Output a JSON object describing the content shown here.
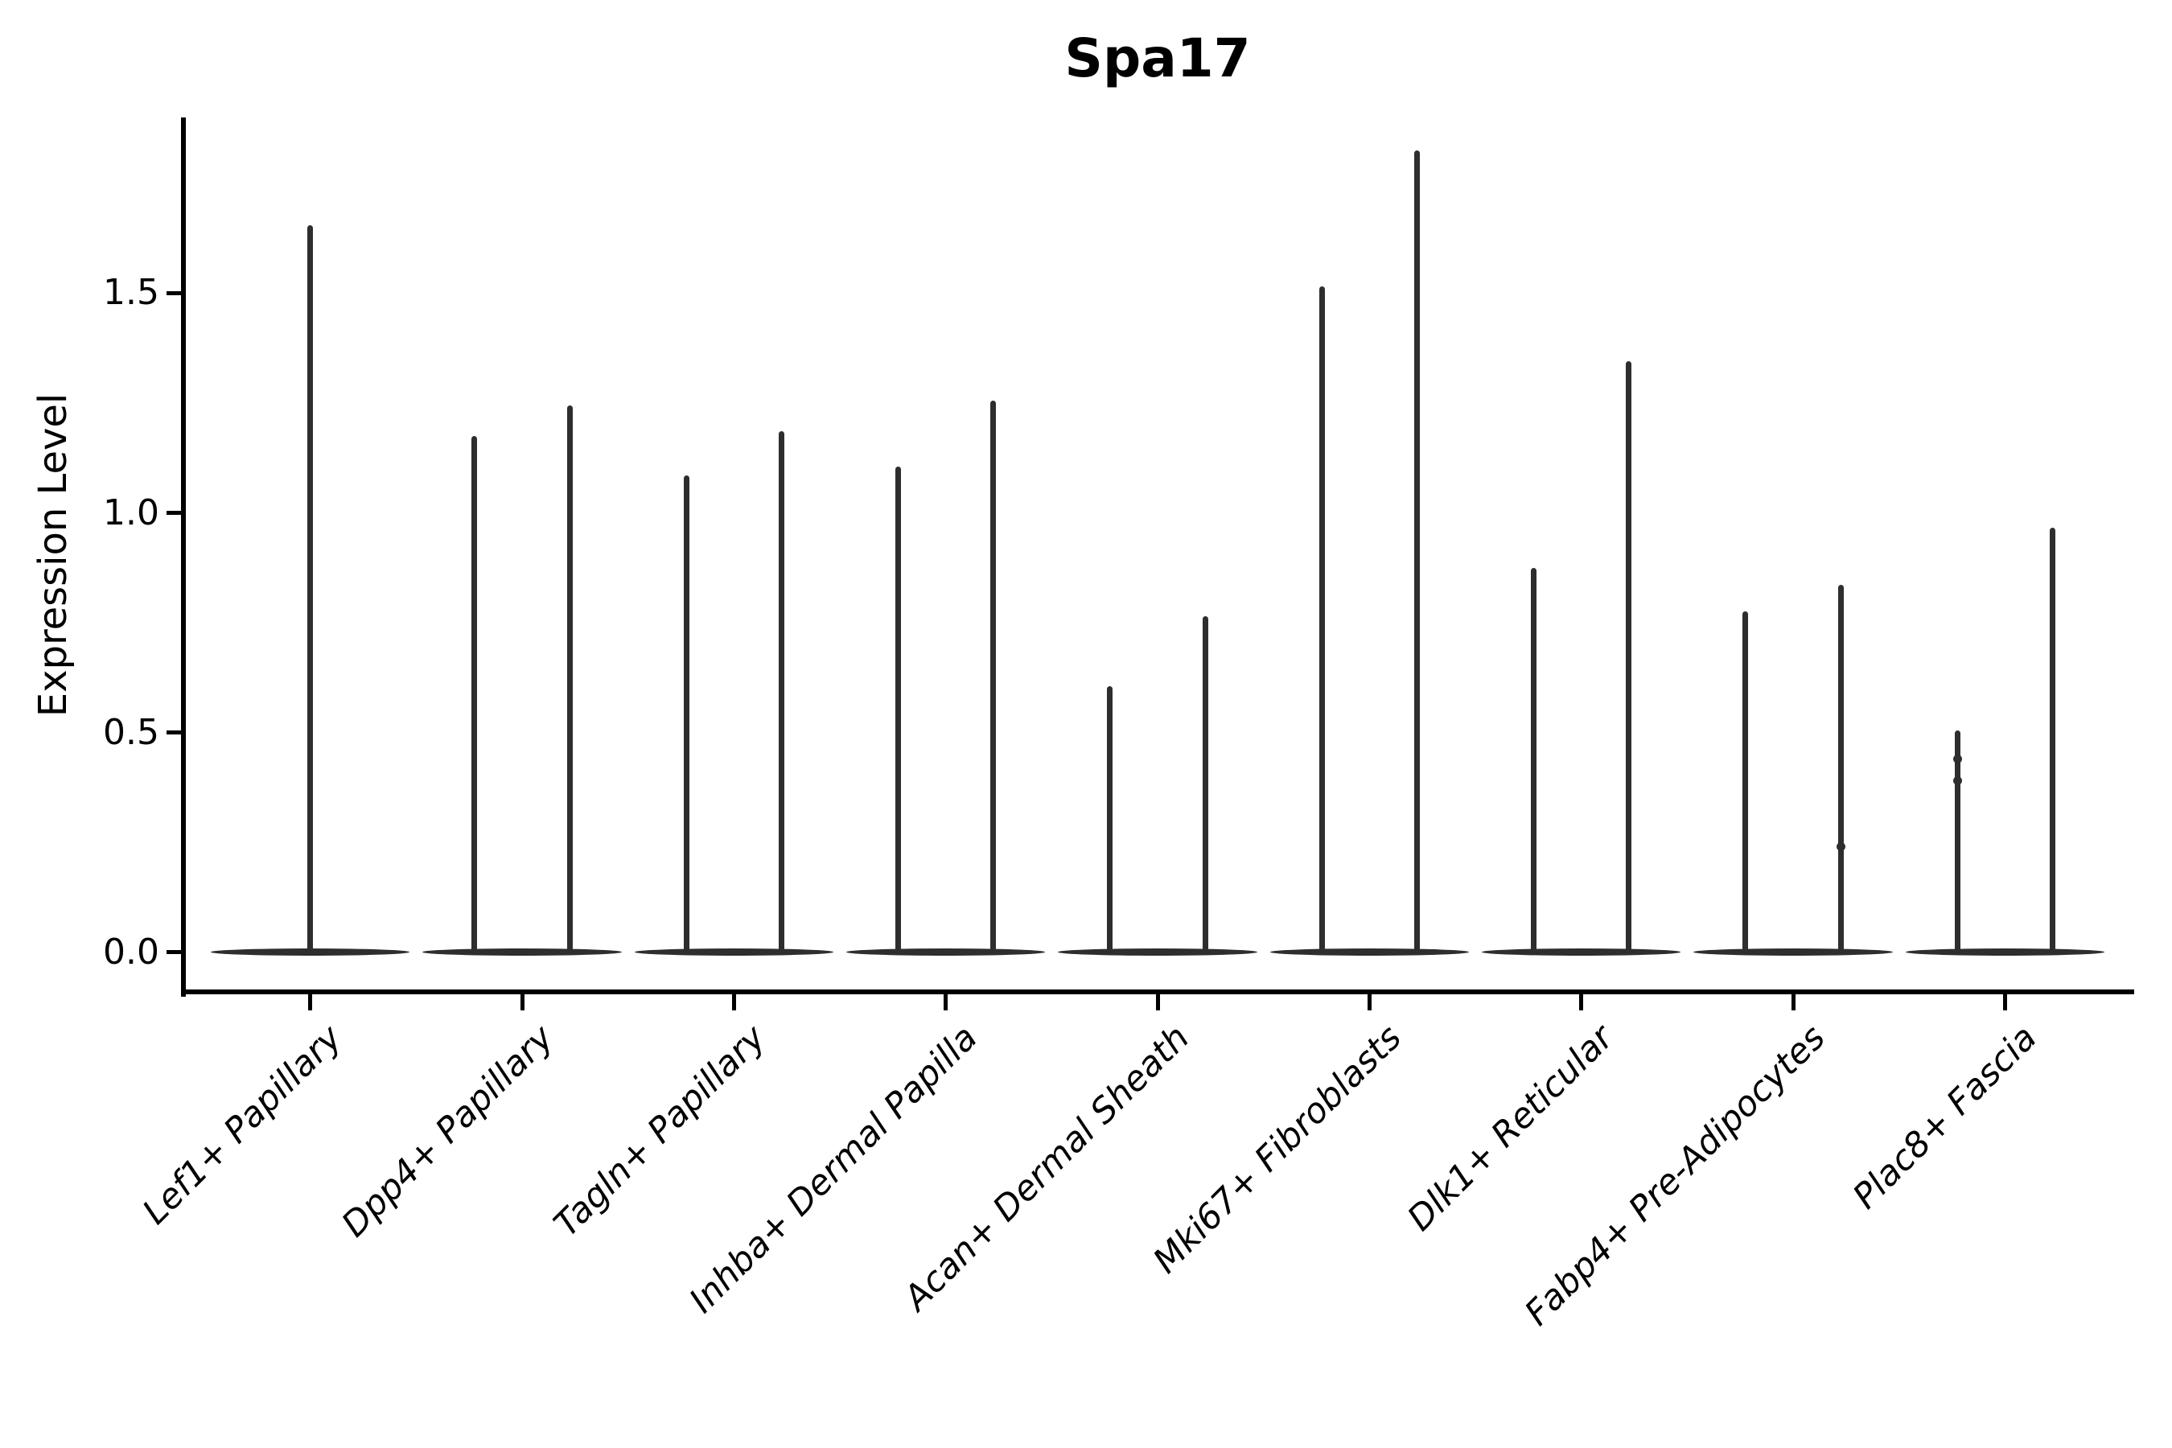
{
  "title": "Spa17",
  "ylabel": "Expression Level",
  "chart_data": {
    "type": "violin",
    "title": "Spa17",
    "xlabel": "",
    "ylabel": "Expression Level",
    "ylim": [
      -0.09,
      1.9
    ],
    "grid": false,
    "legend_position": "none",
    "yticks": [
      0.0,
      0.5,
      1.0,
      1.5
    ],
    "ytick_labels": [
      "0.0",
      "0.5",
      "1.0",
      "1.5"
    ],
    "categories": [
      "Lef1+ Papillary",
      "Dpp4+ Papillary",
      "Tagln+ Papillary",
      "Inhba+ Dermal Papilla",
      "Acan+ Dermal Sheath",
      "Mki67+ Fibroblasts",
      "Dlk1+ Reticular",
      "Fabp4+ Pre-Adipocytes",
      "Plac8+ Fascia"
    ],
    "violins": [
      {
        "category": "Lef1+ Papillary",
        "spikes": [
          {
            "offset": 0.0,
            "max": 1.65
          }
        ],
        "dots": []
      },
      {
        "category": "Dpp4+ Papillary",
        "spikes": [
          {
            "offset": -0.225,
            "max": 1.17
          },
          {
            "offset": 0.225,
            "max": 1.24
          }
        ],
        "dots": []
      },
      {
        "category": "Tagln+ Papillary",
        "spikes": [
          {
            "offset": -0.225,
            "max": 1.08
          },
          {
            "offset": 0.225,
            "max": 1.18
          }
        ],
        "dots": []
      },
      {
        "category": "Inhba+ Dermal Papilla",
        "spikes": [
          {
            "offset": -0.225,
            "max": 1.1
          },
          {
            "offset": 0.225,
            "max": 1.25
          }
        ],
        "dots": []
      },
      {
        "category": "Acan+ Dermal Sheath",
        "spikes": [
          {
            "offset": -0.225,
            "max": 0.6
          },
          {
            "offset": 0.225,
            "max": 0.76
          }
        ],
        "dots": []
      },
      {
        "category": "Mki67+ Fibroblasts",
        "spikes": [
          {
            "offset": -0.225,
            "max": 1.51
          },
          {
            "offset": 0.225,
            "max": 1.82
          }
        ],
        "dots": []
      },
      {
        "category": "Dlk1+ Reticular",
        "spikes": [
          {
            "offset": -0.225,
            "max": 0.87
          },
          {
            "offset": 0.225,
            "max": 1.34
          }
        ],
        "dots": []
      },
      {
        "category": "Fabp4+ Pre-Adipocytes",
        "spikes": [
          {
            "offset": -0.225,
            "max": 0.77
          },
          {
            "offset": 0.225,
            "max": 0.83
          }
        ],
        "dots": [
          {
            "offset": 0.225,
            "value": 0.24
          }
        ]
      },
      {
        "category": "Plac8+ Fascia",
        "spikes": [
          {
            "offset": -0.225,
            "max": 0.5
          },
          {
            "offset": 0.225,
            "max": 0.96
          }
        ],
        "dots": [
          {
            "offset": -0.225,
            "value": 0.44
          },
          {
            "offset": -0.225,
            "value": 0.39
          }
        ]
      }
    ],
    "base_halfwidth": 0.47,
    "baseline_value": 0.0,
    "colors": {
      "violin": "#2e2e2e",
      "axis": "#000000",
      "background": "#ffffff"
    }
  }
}
